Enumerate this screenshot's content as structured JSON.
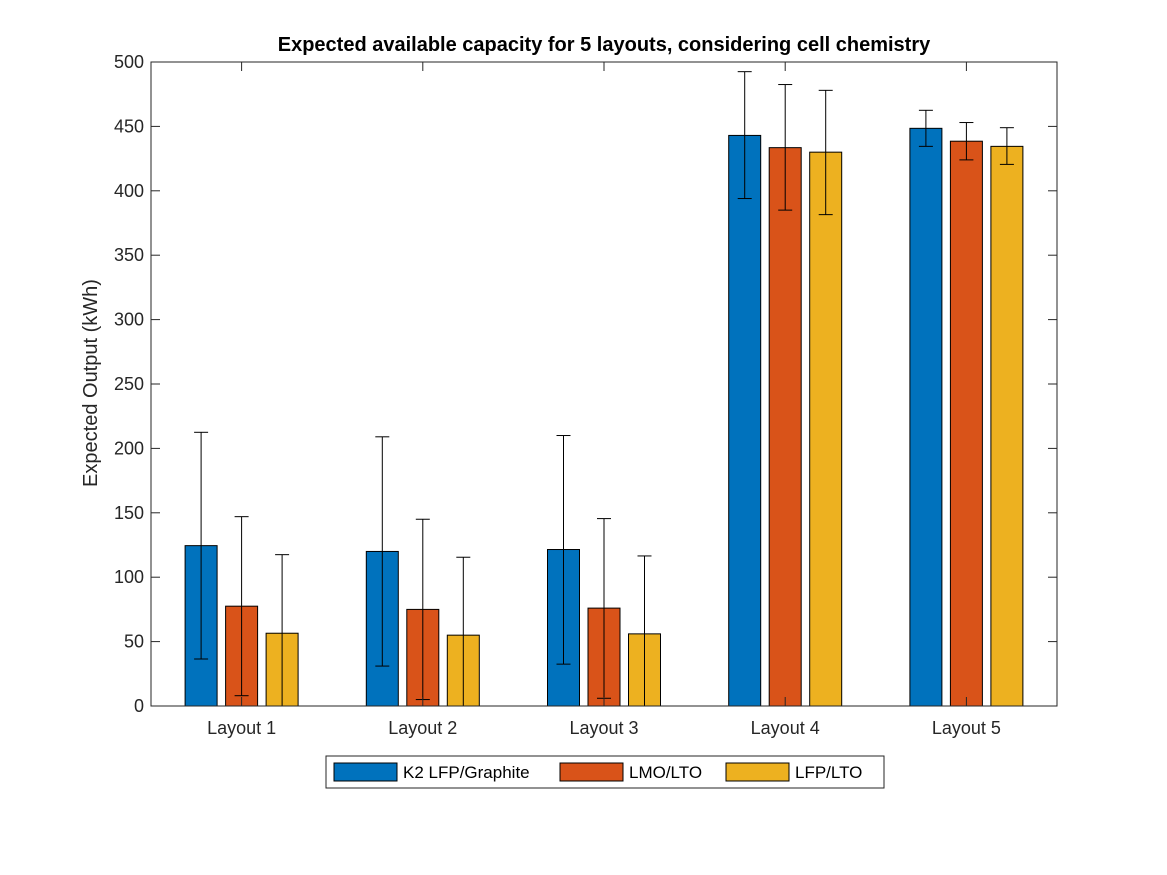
{
  "chart_data": {
    "type": "bar",
    "title": "Expected available capacity for 5 layouts, considering cell chemistry",
    "xlabel": "",
    "ylabel": "Expected Output (kWh)",
    "categories": [
      "Layout 1",
      "Layout 2",
      "Layout 3",
      "Layout 4",
      "Layout 5"
    ],
    "ylim": [
      0,
      500
    ],
    "yticks": [
      0,
      50,
      100,
      150,
      200,
      250,
      300,
      350,
      400,
      450,
      500
    ],
    "grid": false,
    "legend_position": "bottom-outside",
    "legend_orientation": "horizontal",
    "series": [
      {
        "name": "K2 LFP/Graphite",
        "color": "#0072BD",
        "values": [
          124.5,
          120,
          121.5,
          443,
          448.5
        ],
        "error_low": [
          36.5,
          31,
          32.5,
          394,
          434.5
        ],
        "error_high": [
          212.5,
          209,
          210,
          492.5,
          462.5
        ]
      },
      {
        "name": "LMO/LTO",
        "color": "#D95319",
        "values": [
          77.5,
          75,
          76,
          433.5,
          438.5
        ],
        "error_low": [
          8,
          5,
          6,
          385,
          424
        ],
        "error_high": [
          147,
          145,
          145.5,
          482.5,
          453
        ]
      },
      {
        "name": "LFP/LTO",
        "color": "#EDB120",
        "values": [
          56.5,
          55,
          56,
          430,
          434.5
        ],
        "error_low": [
          0,
          0,
          0,
          381.5,
          420.5
        ],
        "error_high": [
          117.5,
          115.5,
          116.5,
          478,
          449
        ]
      }
    ]
  }
}
